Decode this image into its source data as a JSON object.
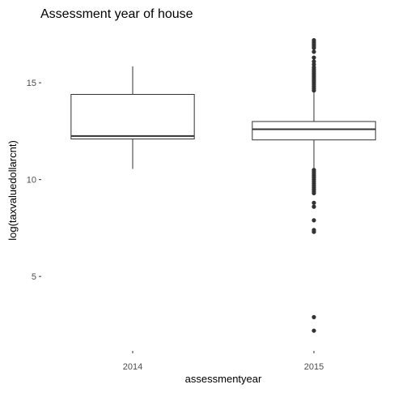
{
  "chart_data": {
    "type": "boxplot",
    "title": "Assessment year of house",
    "xlabel": "assessmentyear",
    "ylabel": "log(taxvaluedollarcnt)",
    "ylim": [
      1.2,
      17.6
    ],
    "yticks": [
      5,
      10,
      15
    ],
    "grid": false,
    "categories": [
      "2014",
      "2015"
    ],
    "boxes": [
      {
        "category": "2014",
        "whisker_low": 10.55,
        "q1": 12.1,
        "median": 12.25,
        "q3": 14.4,
        "whisker_high": 15.85,
        "outliers": []
      },
      {
        "category": "2015",
        "whisker_low": 10.6,
        "q1": 12.05,
        "median": 12.6,
        "q3": 13.0,
        "whisker_high": 14.5,
        "outliers": [
          17.2,
          17.1,
          17.0,
          16.9,
          16.8,
          16.6,
          16.3,
          16.1,
          15.95,
          15.8,
          15.7,
          15.6,
          15.5,
          15.4,
          15.3,
          15.2,
          15.1,
          15.0,
          14.9,
          14.8,
          14.7,
          14.6,
          10.5,
          10.4,
          10.3,
          10.2,
          10.1,
          10.0,
          9.9,
          9.8,
          9.7,
          9.6,
          9.5,
          9.4,
          9.3,
          8.8,
          8.6,
          7.9,
          7.4,
          7.3,
          2.9,
          2.2
        ]
      }
    ]
  }
}
